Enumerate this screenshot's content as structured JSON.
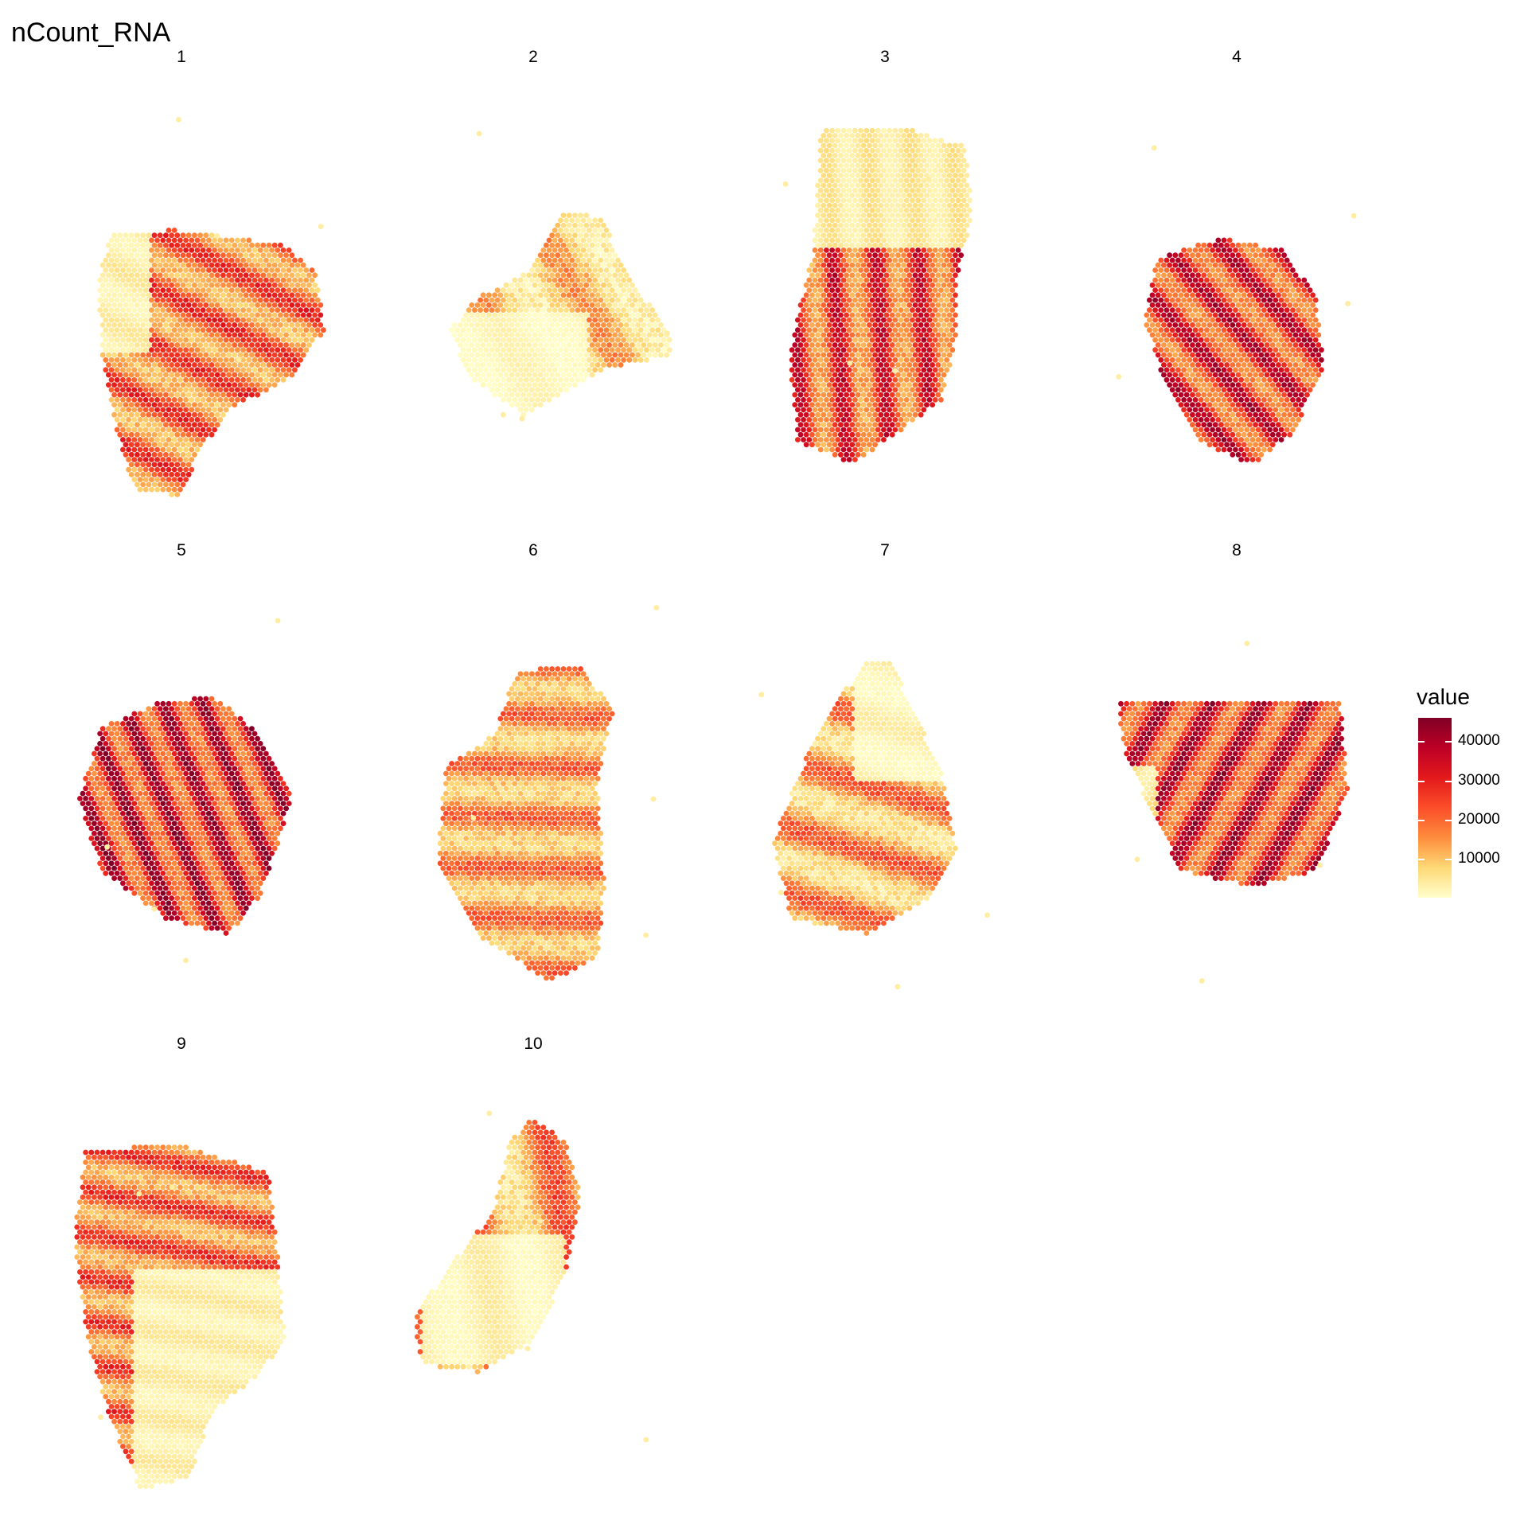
{
  "chart_data": {
    "type": "heatmap",
    "title": "nCount_RNA",
    "facets": [
      "1",
      "2",
      "3",
      "4",
      "5",
      "6",
      "7",
      "8",
      "9",
      "10"
    ],
    "legend": {
      "title": "value",
      "placement": "right",
      "ticks": [
        "40000",
        "30000",
        "20000",
        "10000"
      ],
      "tick_values": [
        40000,
        30000,
        20000,
        10000
      ],
      "range": [
        0,
        46000
      ],
      "colors": [
        "#FFFFCC",
        "#FED976",
        "#FD8D3C",
        "#FC4E2A",
        "#E31A1C",
        "#BD0026",
        "#800026"
      ]
    },
    "grid": false,
    "axes_visible": false
  }
}
